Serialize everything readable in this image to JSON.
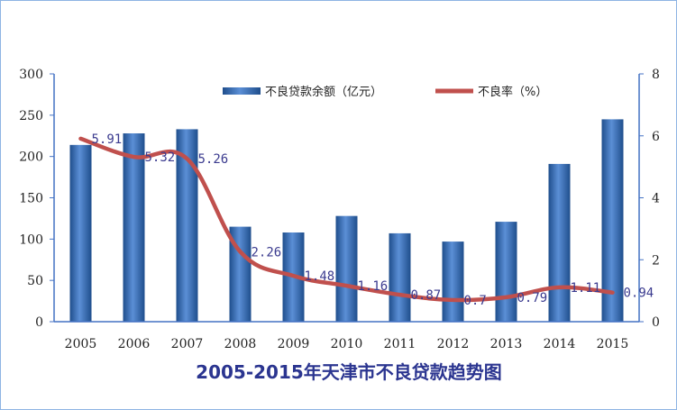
{
  "chart_data": {
    "type": "bar",
    "title": "2005-2015年天津市不良贷款趋势图",
    "categories": [
      "2005",
      "2006",
      "2007",
      "2008",
      "2009",
      "2010",
      "2011",
      "2012",
      "2013",
      "2014",
      "2015"
    ],
    "series": [
      {
        "name": "不良贷款余额（亿元）",
        "type": "bar",
        "axis": "left",
        "values": [
          214,
          228,
          233,
          115,
          108,
          128,
          107,
          97,
          121,
          191,
          245
        ]
      },
      {
        "name": "不良率（%）",
        "type": "line",
        "axis": "right",
        "values": [
          5.91,
          5.32,
          5.26,
          2.26,
          1.48,
          1.16,
          0.87,
          0.7,
          0.79,
          1.11,
          0.94
        ],
        "labels": [
          "5.91",
          "5.32",
          "5.26",
          "2.26",
          "1.48",
          "1.16",
          "0.87",
          "0.7",
          "0.79",
          "1.11",
          "0.94"
        ]
      }
    ],
    "y_left": {
      "range": [
        0,
        300
      ],
      "ticks": [
        0,
        50,
        100,
        150,
        200,
        250,
        300
      ]
    },
    "y_right": {
      "range": [
        0,
        8
      ],
      "ticks": [
        0,
        2,
        4,
        6,
        8
      ]
    },
    "legend_position": "top-right",
    "colors": {
      "bar_light": "#5b8fd6",
      "bar_dark": "#1f4e8c",
      "line": "#c0504d",
      "axis": "#4472c4",
      "label": "#3b3b8f",
      "title": "#2b3590",
      "border": "#8eb4e3"
    }
  }
}
